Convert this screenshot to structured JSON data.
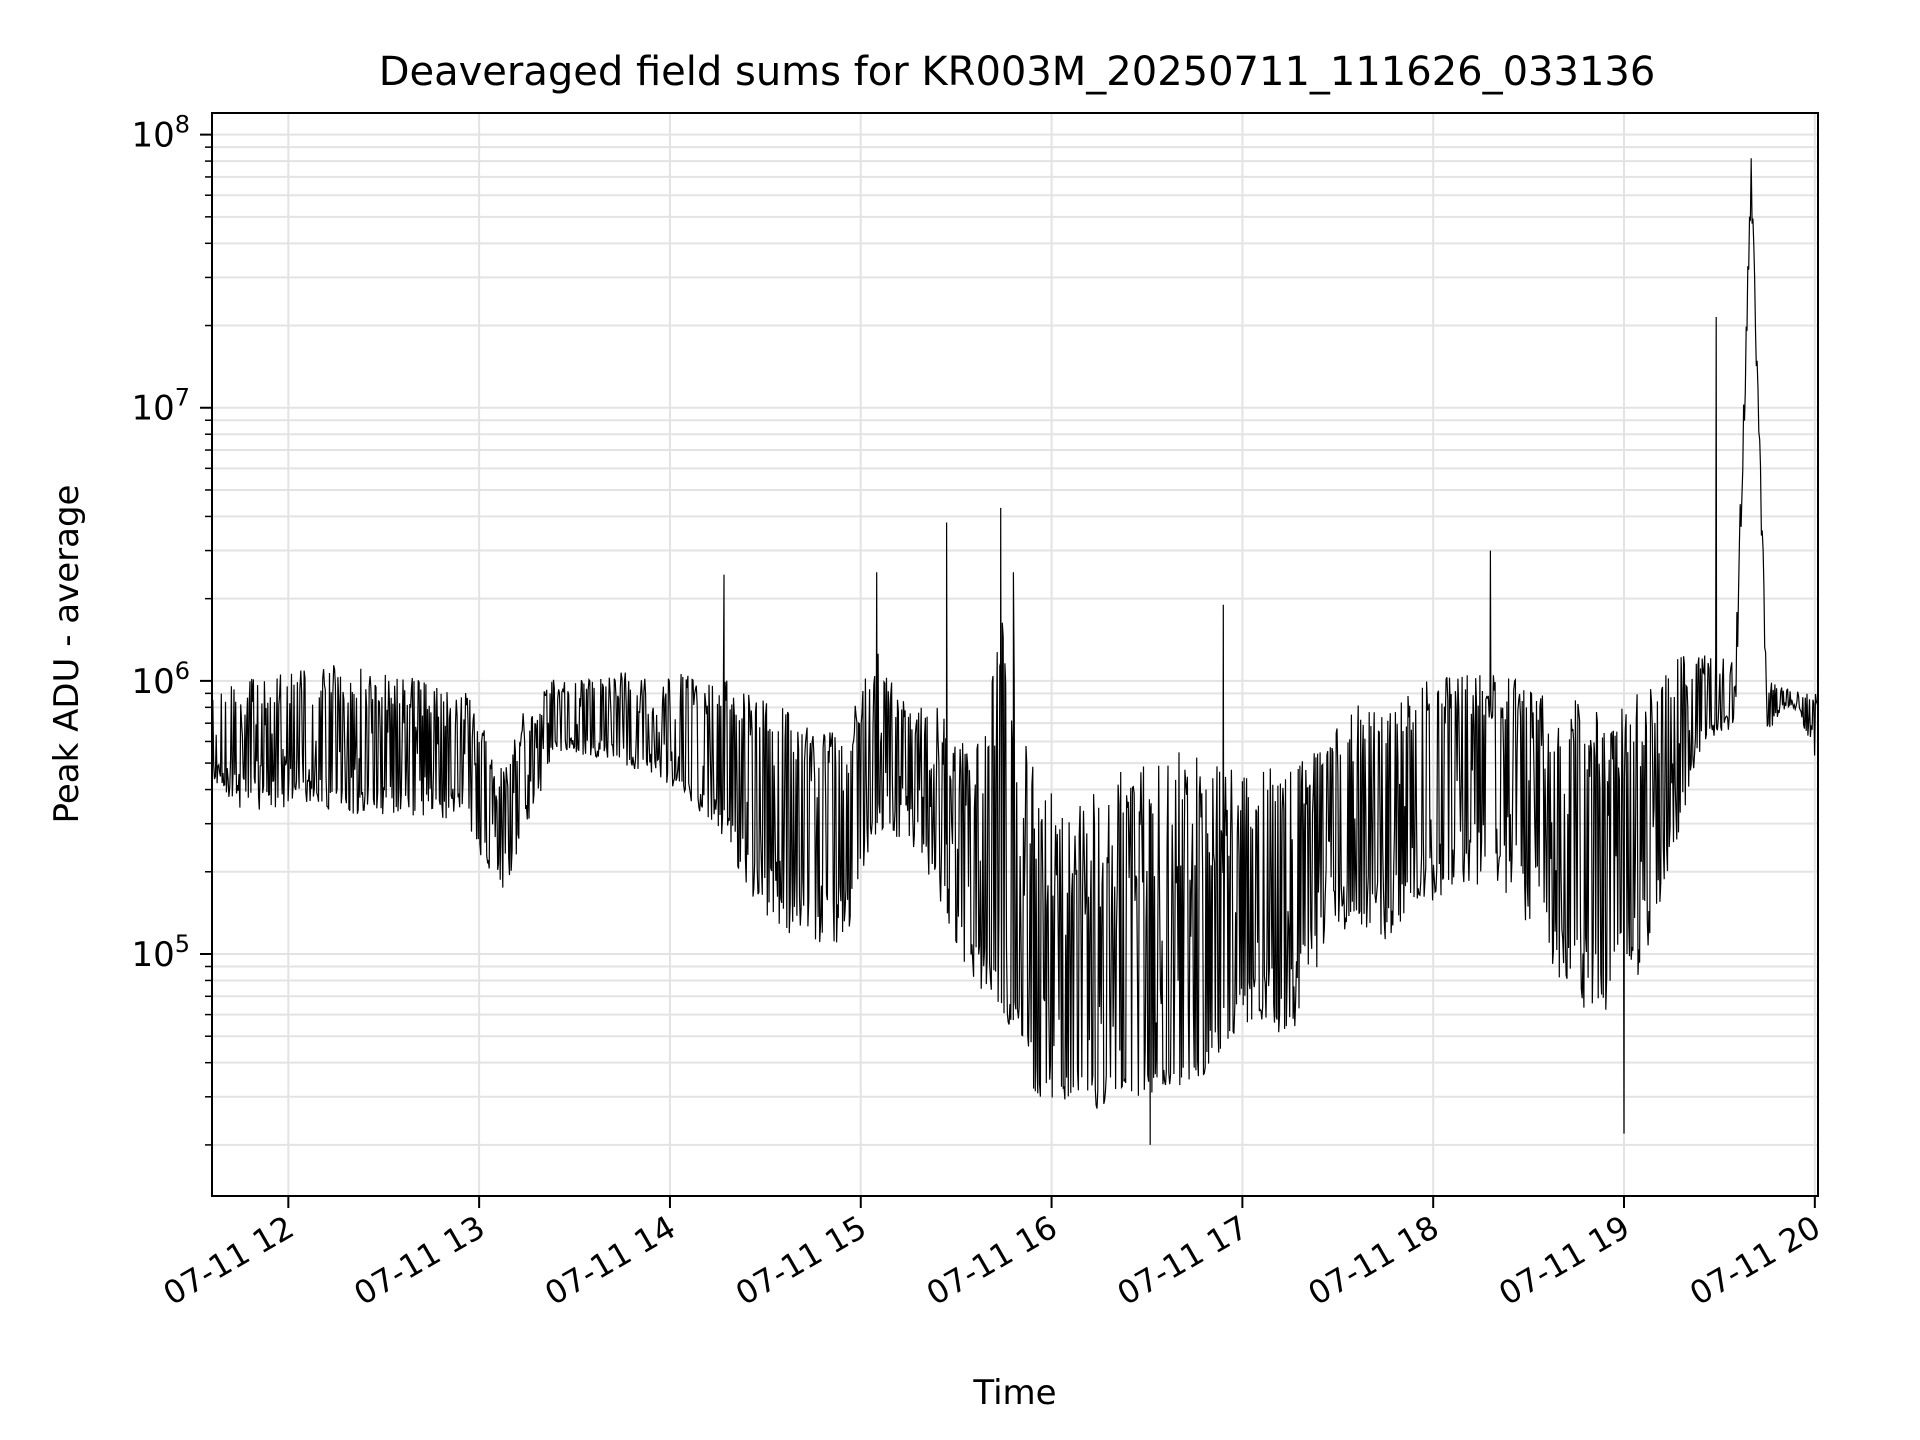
{
  "chart_data": {
    "type": "line",
    "title": "Deaveraged field sums for KR003M_20250711_111626_033136",
    "xlabel": "Time",
    "ylabel": "Peak ADU - average",
    "x_is_time": true,
    "xlim": [
      "2025-07-11 11:36",
      "2025-07-11 20:01"
    ],
    "ylim": [
      13000,
      120000000
    ],
    "yscale": "log",
    "grid": true,
    "x_ticks": [
      "07-11 12",
      "07-11 13",
      "07-11 14",
      "07-11 15",
      "07-11 16",
      "07-11 17",
      "07-11 18",
      "07-11 19",
      "07-11 20"
    ],
    "y_ticks": [
      {
        "base": "10",
        "exp": "5",
        "value": 100000
      },
      {
        "base": "10",
        "exp": "6",
        "value": 1000000
      },
      {
        "base": "10",
        "exp": "7",
        "value": 10000000
      },
      {
        "base": "10",
        "exp": "8",
        "value": 100000000
      }
    ],
    "series": [
      {
        "color": "#000000",
        "x": [
          "2025-07-11 11:36",
          "2025-07-11 11:45",
          "2025-07-11 11:55",
          "2025-07-11 12:05",
          "2025-07-11 12:15",
          "2025-07-11 12:25",
          "2025-07-11 12:35",
          "2025-07-11 12:45",
          "2025-07-11 12:55",
          "2025-07-11 13:00",
          "2025-07-11 13:05",
          "2025-07-11 13:08",
          "2025-07-11 13:15",
          "2025-07-11 13:25",
          "2025-07-11 13:35",
          "2025-07-11 13:45",
          "2025-07-11 13:55",
          "2025-07-11 14:05",
          "2025-07-11 14:15",
          "2025-07-11 14:25",
          "2025-07-11 14:35",
          "2025-07-11 14:45",
          "2025-07-11 14:55",
          "2025-07-11 15:05",
          "2025-07-11 15:15",
          "2025-07-11 15:25",
          "2025-07-11 15:35",
          "2025-07-11 15:45",
          "2025-07-11 15:55",
          "2025-07-11 16:05",
          "2025-07-11 16:15",
          "2025-07-11 16:25",
          "2025-07-11 16:35",
          "2025-07-11 16:45",
          "2025-07-11 16:55",
          "2025-07-11 17:05",
          "2025-07-11 17:15",
          "2025-07-11 17:25",
          "2025-07-11 17:35",
          "2025-07-11 17:45",
          "2025-07-11 17:55",
          "2025-07-11 18:05",
          "2025-07-11 18:15",
          "2025-07-11 18:25",
          "2025-07-11 18:35",
          "2025-07-11 18:45",
          "2025-07-11 18:55",
          "2025-07-11 19:05",
          "2025-07-11 19:15",
          "2025-07-11 19:25",
          "2025-07-11 19:35",
          "2025-07-11 19:40",
          "2025-07-11 19:45",
          "2025-07-11 19:50",
          "2025-07-11 19:55",
          "2025-07-11 20:00"
        ],
        "y": [
          600000,
          650000,
          620000,
          600000,
          580000,
          560000,
          560000,
          540000,
          520000,
          380000,
          280000,
          270000,
          450000,
          720000,
          700000,
          680000,
          620000,
          540000,
          520000,
          420000,
          380000,
          310000,
          330000,
          560000,
          520000,
          300000,
          170000,
          150000,
          62000,
          55000,
          48000,
          45000,
          46000,
          48000,
          110000,
          160000,
          150000,
          260000,
          320000,
          340000,
          420000,
          470000,
          520000,
          460000,
          350000,
          280000,
          190000,
          290000,
          580000,
          820000,
          860000,
          78000000,
          760000,
          880000,
          860000,
          720000
        ],
        "band_lo": [
          430000,
          330000,
          330000,
          330000,
          330000,
          320000,
          320000,
          320000,
          300000,
          230000,
          190000,
          170000,
          300000,
          540000,
          530000,
          490000,
          450000,
          380000,
          280000,
          160000,
          120000,
          110000,
          110000,
          280000,
          260000,
          150000,
          80000,
          60000,
          30000,
          29000,
          27000,
          30000,
          31000,
          33000,
          45000,
          55000,
          48000,
          100000,
          130000,
          110000,
          130000,
          170000,
          180000,
          160000,
          100000,
          60000,
          60000,
          80000,
          220000,
          600000,
          680000,
          60000000,
          640000,
          780000,
          780000,
          500000
        ],
        "band_hi": [
          900000,
          1000000,
          1050000,
          1100000,
          1150000,
          1100000,
          1050000,
          1000000,
          950000,
          750000,
          520000,
          500000,
          850000,
          1050000,
          1050000,
          1100000,
          1000000,
          1100000,
          1050000,
          950000,
          800000,
          700000,
          680000,
          1300000,
          850000,
          800000,
          550000,
          1800000,
          500000,
          330000,
          400000,
          500000,
          550000,
          560000,
          540000,
          500000,
          470000,
          600000,
          800000,
          900000,
          1000000,
          1050000,
          1050000,
          1050000,
          900000,
          850000,
          750000,
          950000,
          1200000,
          1300000,
          1250000,
          80000000,
          1000000,
          960000,
          930000,
          900000
        ],
        "spikes": [
          {
            "x": "2025-07-11 14:17",
            "y": 2450000
          },
          {
            "x": "2025-07-11 15:05",
            "y": 2500000
          },
          {
            "x": "2025-07-11 15:27",
            "y": 3800000
          },
          {
            "x": "2025-07-11 15:44",
            "y": 4300000
          },
          {
            "x": "2025-07-11 15:48",
            "y": 2500000
          },
          {
            "x": "2025-07-11 16:31",
            "y": 20000
          },
          {
            "x": "2025-07-11 16:54",
            "y": 1900000
          },
          {
            "x": "2025-07-11 18:18",
            "y": 3000000
          },
          {
            "x": "2025-07-11 19:00",
            "y": 22000
          },
          {
            "x": "2025-07-11 19:29",
            "y": 21500000
          },
          {
            "x": "2025-07-11 19:40",
            "y": 82000000
          }
        ]
      }
    ]
  }
}
